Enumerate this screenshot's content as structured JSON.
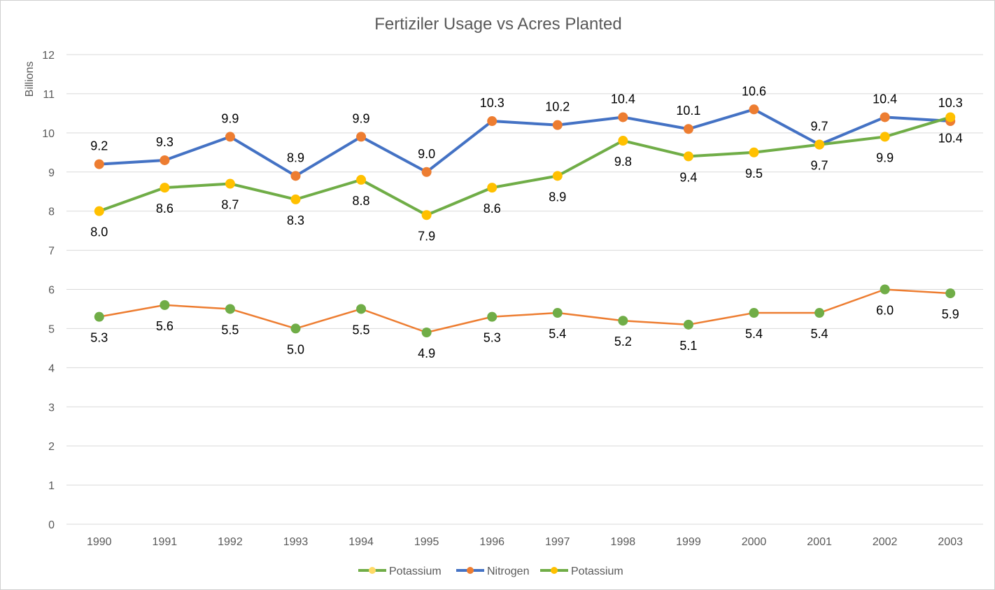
{
  "chart_data": {
    "type": "line",
    "title": "Fertiziler Usage vs Acres Planted",
    "ylabel": "Billions",
    "xlabel": "",
    "ylim": [
      0,
      12
    ],
    "yticks": [
      0,
      1,
      2,
      3,
      4,
      5,
      6,
      7,
      8,
      9,
      10,
      11,
      12
    ],
    "grid": true,
    "legend_position": "bottom",
    "categories": [
      "1990",
      "1991",
      "1992",
      "1993",
      "1994",
      "1995",
      "1996",
      "1997",
      "1998",
      "1999",
      "2000",
      "2001",
      "2002",
      "2003"
    ],
    "series": [
      {
        "name": "Potassium",
        "line_color": "#ED7D31",
        "marker_color": "#70AD47",
        "legend_line_color": "#70AD47",
        "legend_marker_color": "#FFD966",
        "values": [
          5.3,
          5.6,
          5.5,
          5.0,
          5.5,
          4.9,
          5.3,
          5.4,
          5.2,
          5.1,
          5.4,
          5.4,
          6.0,
          5.9
        ],
        "labels": [
          "5.3",
          "5.6",
          "5.5",
          "5.0",
          "5.5",
          "4.9",
          "5.3",
          "5.4",
          "5.2",
          "5.1",
          "5.4",
          "5.4",
          "6.0",
          "5.9"
        ],
        "label_position": "below"
      },
      {
        "name": "Nitrogen",
        "line_color": "#4472C4",
        "marker_color": "#ED7D31",
        "legend_line_color": "#4472C4",
        "legend_marker_color": "#ED7D31",
        "values": [
          9.2,
          9.3,
          9.9,
          8.9,
          9.9,
          9.0,
          10.3,
          10.2,
          10.4,
          10.1,
          10.6,
          9.7,
          10.4,
          10.3
        ],
        "labels": [
          "9.2",
          "9.3",
          "9.9",
          "8.9",
          "9.9",
          "9.0",
          "10.3",
          "10.2",
          "10.4",
          "10.1",
          "10.6",
          "9.7",
          "10.4",
          "10.3"
        ],
        "label_position": "above"
      },
      {
        "name": "Potassium",
        "line_color": "#70AD47",
        "marker_color": "#FFC000",
        "legend_line_color": "#70AD47",
        "legend_marker_color": "#FFC000",
        "values": [
          8.0,
          8.6,
          8.7,
          8.3,
          8.8,
          7.9,
          8.6,
          8.9,
          9.8,
          9.4,
          9.5,
          9.7,
          9.9,
          10.4
        ],
        "labels": [
          "8.0",
          "8.6",
          "8.7",
          "8.3",
          "8.8",
          "7.9",
          "8.6",
          "8.9",
          "9.8",
          "9.4",
          "9.5",
          "9.7",
          "9.9",
          "10.4"
        ],
        "label_position": "below"
      }
    ]
  }
}
